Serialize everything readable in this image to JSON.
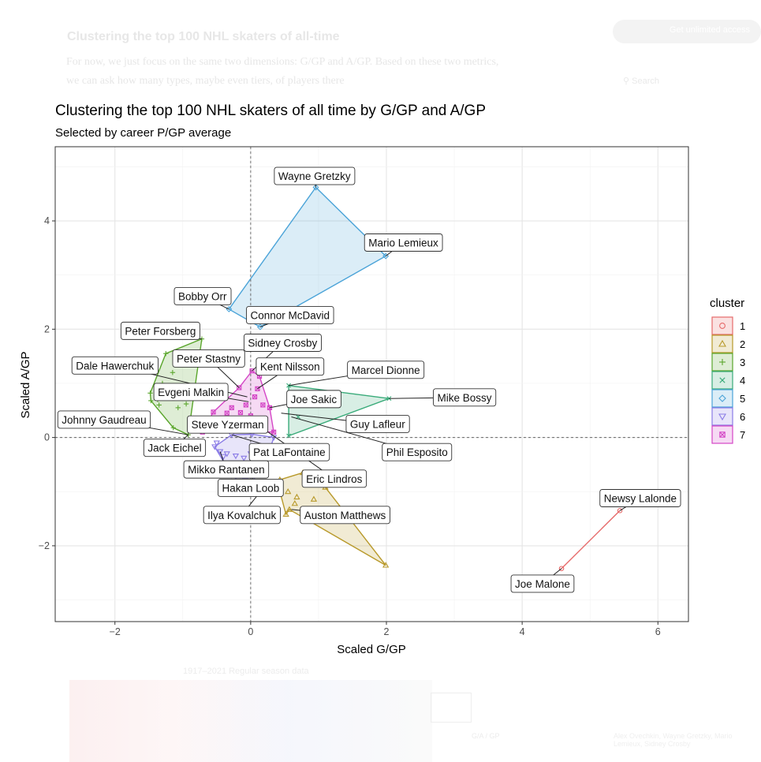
{
  "page": {
    "background_heading": "Clustering the top 100 NHL skaters of all-time",
    "background_paragraph": "For now, we just focus on the same two dimensions: G/GP and A/GP. Based on these two metrics, we can ask how many types, maybe even tiers, of players there",
    "background_button": "Get unlimited access",
    "background_search": "Search",
    "background_caption": "1917–2021 Regular season data",
    "background_footer_label": "G/A / GP",
    "background_footer_right": "Alex Ovechkin, Wayne Gretzky, Mario Lemieux, Sidney Crosby"
  },
  "chart_data": {
    "type": "scatter",
    "title": "Clustering the top 100 NHL skaters of all time by G/GP and A/GP",
    "subtitle": "Selected by career P/GP average",
    "xlabel": "Scaled G/GP",
    "ylabel": "Scaled A/GP",
    "xlim": [
      -2.88,
      6.45
    ],
    "ylim": [
      -3.4,
      5.37
    ],
    "xticks": [
      -2,
      0,
      2,
      4,
      6
    ],
    "yticks": [
      -2,
      0,
      2,
      4
    ],
    "xtick_labels": [
      "−2",
      "0",
      "2",
      "4",
      "6"
    ],
    "ytick_labels": [
      "−2",
      "0",
      "2",
      "4"
    ],
    "grid": true,
    "reference_lines": {
      "x": 0,
      "y": 0
    },
    "legend": {
      "title": "cluster",
      "position": "right",
      "entries": [
        {
          "label": "1",
          "color": "#e66a6a",
          "shape": "circle"
        },
        {
          "label": "2",
          "color": "#b8992a",
          "shape": "triangle"
        },
        {
          "label": "3",
          "color": "#5aa62c",
          "shape": "plus"
        },
        {
          "label": "4",
          "color": "#3aab7a",
          "shape": "cross"
        },
        {
          "label": "5",
          "color": "#4aa3d8",
          "shape": "diamond"
        },
        {
          "label": "6",
          "color": "#8a7be6",
          "shape": "triangle-down"
        },
        {
          "label": "7",
          "color": "#d446c6",
          "shape": "square-x"
        }
      ]
    },
    "clusters": [
      {
        "id": "1",
        "hull": [
          [
            4.58,
            -2.42
          ],
          [
            5.44,
            -1.35
          ]
        ],
        "points": [
          [
            4.58,
            -2.42
          ],
          [
            5.44,
            -1.35
          ]
        ]
      },
      {
        "id": "2",
        "hull": [
          [
            0.43,
            -0.78
          ],
          [
            0.77,
            -0.65
          ],
          [
            1.1,
            -0.92
          ],
          [
            1.99,
            -2.36
          ],
          [
            0.57,
            -1.33
          ],
          [
            0.52,
            -1.42
          ],
          [
            0.42,
            -0.95
          ]
        ],
        "points": [
          [
            0.43,
            -0.78
          ],
          [
            0.77,
            -0.65
          ],
          [
            1.1,
            -0.92
          ],
          [
            1.99,
            -2.36
          ],
          [
            0.57,
            -1.33
          ],
          [
            0.52,
            -1.42
          ],
          [
            0.42,
            -0.95
          ],
          [
            0.68,
            -1.1
          ],
          [
            0.93,
            -1.14
          ],
          [
            0.65,
            -1.22
          ],
          [
            0.79,
            -1.5
          ],
          [
            0.55,
            -1.0
          ]
        ]
      },
      {
        "id": "3",
        "hull": [
          [
            -0.72,
            1.82
          ],
          [
            -0.92,
            0.05
          ],
          [
            -1.14,
            0.18
          ],
          [
            -1.47,
            0.68
          ],
          [
            -1.48,
            0.82
          ],
          [
            -1.25,
            1.55
          ]
        ],
        "points": [
          [
            -0.72,
            1.82
          ],
          [
            -0.92,
            0.05
          ],
          [
            -1.14,
            0.18
          ],
          [
            -1.47,
            0.68
          ],
          [
            -1.48,
            0.82
          ],
          [
            -1.25,
            1.55
          ],
          [
            -1.37,
            0.7
          ],
          [
            -1.15,
            1.2
          ],
          [
            -1.07,
            0.55
          ],
          [
            -0.95,
            0.62
          ],
          [
            -1.35,
            0.6
          ],
          [
            -1.3,
            1.0
          ],
          [
            -1.2,
            0.9
          ]
        ]
      },
      {
        "id": "4",
        "hull": [
          [
            0.56,
            0.96
          ],
          [
            2.04,
            0.72
          ],
          [
            0.56,
            0.03
          ]
        ],
        "points": [
          [
            0.56,
            0.96
          ],
          [
            2.04,
            0.72
          ],
          [
            0.56,
            0.03
          ],
          [
            0.7,
            0.38
          ]
        ]
      },
      {
        "id": "5",
        "hull": [
          [
            0.96,
            4.62
          ],
          [
            1.99,
            3.35
          ],
          [
            0.14,
            2.04
          ],
          [
            -0.32,
            2.37
          ]
        ],
        "points": [
          [
            0.96,
            4.62
          ],
          [
            1.99,
            3.35
          ],
          [
            0.14,
            2.04
          ],
          [
            -0.32,
            2.37
          ]
        ]
      },
      {
        "id": "6",
        "hull": [
          [
            -0.53,
            -0.17
          ],
          [
            -0.28,
            0.05
          ],
          [
            0.02,
            0.06
          ],
          [
            0.34,
            0.0
          ],
          [
            0.2,
            -0.55
          ],
          [
            -0.06,
            -0.92
          ],
          [
            -0.28,
            -0.7
          ]
        ],
        "points": [
          [
            -0.53,
            -0.17
          ],
          [
            -0.28,
            0.05
          ],
          [
            0.02,
            0.06
          ],
          [
            0.34,
            0.0
          ],
          [
            0.2,
            -0.55
          ],
          [
            -0.06,
            -0.92
          ],
          [
            -0.28,
            -0.7
          ],
          [
            -0.45,
            -0.26
          ],
          [
            -0.35,
            -0.3
          ],
          [
            -0.22,
            -0.34
          ],
          [
            -0.1,
            -0.38
          ],
          [
            -0.04,
            -0.6
          ],
          [
            0.05,
            -0.45
          ],
          [
            -0.3,
            -0.5
          ],
          [
            -0.15,
            -0.7
          ],
          [
            0.0,
            -0.3
          ],
          [
            0.12,
            -0.2
          ],
          [
            0.15,
            -0.65
          ],
          [
            -0.4,
            -0.35
          ],
          [
            -0.2,
            -0.55
          ],
          [
            -0.08,
            -0.8
          ],
          [
            0.08,
            -0.5
          ],
          [
            -0.5,
            -0.1
          ],
          [
            0.22,
            -0.3
          ]
        ]
      },
      {
        "id": "7",
        "hull": [
          [
            0.02,
            1.23
          ],
          [
            0.13,
            1.13
          ],
          [
            0.28,
            0.55
          ],
          [
            0.34,
            0.1
          ],
          [
            -0.71,
            0.1
          ],
          [
            -0.55,
            0.47
          ],
          [
            -0.17,
            0.92
          ]
        ],
        "points": [
          [
            0.02,
            1.23
          ],
          [
            0.13,
            1.13
          ],
          [
            0.28,
            0.55
          ],
          [
            0.34,
            0.1
          ],
          [
            -0.71,
            0.1
          ],
          [
            -0.55,
            0.47
          ],
          [
            -0.17,
            0.92
          ],
          [
            0.1,
            0.9
          ],
          [
            0.06,
            0.75
          ],
          [
            -0.07,
            0.6
          ],
          [
            -0.28,
            0.55
          ],
          [
            -0.42,
            0.36
          ],
          [
            -0.33,
            0.22
          ],
          [
            -0.25,
            0.35
          ],
          [
            -0.13,
            0.28
          ],
          [
            0.0,
            0.4
          ],
          [
            0.12,
            0.35
          ],
          [
            -0.1,
            0.12
          ],
          [
            0.05,
            0.14
          ],
          [
            0.22,
            0.14
          ],
          [
            -0.45,
            0.16
          ],
          [
            -0.15,
            0.46
          ],
          [
            0.18,
            0.6
          ],
          [
            -0.58,
            0.13
          ],
          [
            -0.35,
            0.45
          ],
          [
            0.0,
            0.28
          ]
        ]
      }
    ],
    "annotations": [
      {
        "label": "Wayne Gretzky",
        "point": [
          0.96,
          4.62
        ],
        "label_at": [
          0.94,
          4.83
        ]
      },
      {
        "label": "Mario Lemieux",
        "point": [
          1.99,
          3.35
        ],
        "label_at": [
          2.25,
          3.6
        ]
      },
      {
        "label": "Bobby Orr",
        "point": [
          -0.32,
          2.37
        ],
        "label_at": [
          -0.71,
          2.61
        ]
      },
      {
        "label": "Connor McDavid",
        "point": [
          0.14,
          2.04
        ],
        "label_at": [
          0.58,
          2.26
        ]
      },
      {
        "label": "Peter Forsberg",
        "point": [
          -0.72,
          1.82
        ],
        "label_at": [
          -1.33,
          1.97
        ]
      },
      {
        "label": "Sidney Crosby",
        "point": [
          0.02,
          1.23
        ],
        "label_at": [
          0.47,
          1.75
        ]
      },
      {
        "label": "Peter Stastny",
        "point": [
          -0.17,
          0.92
        ],
        "label_at": [
          -0.62,
          1.46
        ]
      },
      {
        "label": "Dale Hawerchuk",
        "point": [
          -0.05,
          0.75
        ],
        "label_at": [
          -2.0,
          1.33
        ]
      },
      {
        "label": "Kent Nilsson",
        "point": [
          0.1,
          0.9
        ],
        "label_at": [
          0.58,
          1.31
        ]
      },
      {
        "label": "Marcel Dionne",
        "point": [
          0.56,
          0.96
        ],
        "label_at": [
          1.99,
          1.25
        ]
      },
      {
        "label": "Evgeni Malkin",
        "point": [
          -0.03,
          0.66
        ],
        "label_at": [
          -0.88,
          0.84
        ]
      },
      {
        "label": "Joe Sakic",
        "point": [
          0.28,
          0.55
        ],
        "label_at": [
          0.93,
          0.71
        ]
      },
      {
        "label": "Mike Bossy",
        "point": [
          2.04,
          0.72
        ],
        "label_at": [
          3.15,
          0.74
        ]
      },
      {
        "label": "Johnny Gaudreau",
        "point": [
          -0.92,
          0.05
        ],
        "label_at": [
          -2.16,
          0.33
        ]
      },
      {
        "label": "Guy Lafleur",
        "point": [
          0.45,
          0.45
        ],
        "label_at": [
          1.87,
          0.25
        ]
      },
      {
        "label": "Steve Yzerman",
        "point": [
          -0.32,
          0.22
        ],
        "label_at": [
          -0.34,
          0.24
        ]
      },
      {
        "label": "Jack Eichel",
        "point": [
          -0.92,
          0.05
        ],
        "label_at": [
          -1.12,
          -0.19
        ]
      },
      {
        "label": "Pat LaFontaine",
        "point": [
          -0.28,
          0.05
        ],
        "label_at": [
          0.57,
          -0.27
        ]
      },
      {
        "label": "Phil Esposito",
        "point": [
          0.6,
          0.38
        ],
        "label_at": [
          2.45,
          -0.27
        ]
      },
      {
        "label": "Mikko Rantanen",
        "point": [
          -0.45,
          -0.26
        ],
        "label_at": [
          -0.36,
          -0.59
        ]
      },
      {
        "label": "Eric Lindros",
        "point": [
          0.2,
          0.15
        ],
        "label_at": [
          1.23,
          -0.76
        ]
      },
      {
        "label": "Hakan Loob",
        "point": [
          0.05,
          -0.6
        ],
        "label_at": [
          0.0,
          -0.93
        ]
      },
      {
        "label": "Ilya Kovalchuk",
        "point": [
          0.15,
          -0.99
        ],
        "label_at": [
          -0.13,
          -1.43
        ]
      },
      {
        "label": "Auston Matthews",
        "point": [
          0.6,
          -1.33
        ],
        "label_at": [
          1.39,
          -1.43
        ]
      },
      {
        "label": "Newsy Lalonde",
        "point": [
          5.44,
          -1.35
        ],
        "label_at": [
          5.74,
          -1.12
        ]
      },
      {
        "label": "Joe Malone",
        "point": [
          4.58,
          -2.42
        ],
        "label_at": [
          4.3,
          -2.7
        ]
      }
    ]
  }
}
